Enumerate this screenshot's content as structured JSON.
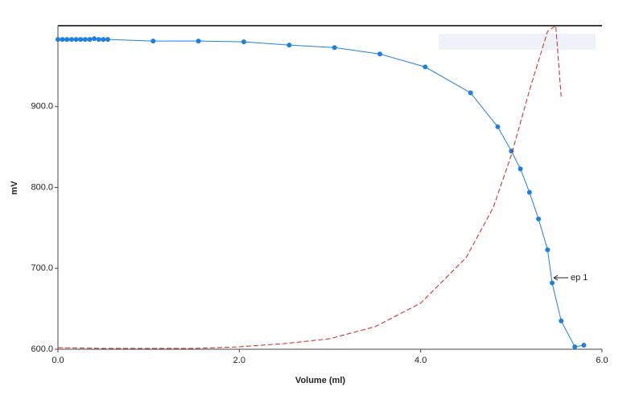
{
  "chart_data": {
    "type": "line",
    "x_label": "Volume (ml)",
    "y_label": "mV",
    "xlim": [
      0,
      6
    ],
    "ylim": [
      600,
      1000
    ],
    "xticks": [
      {
        "value": 0,
        "label": "0.0"
      },
      {
        "value": 2,
        "label": "2.0"
      },
      {
        "value": 4,
        "label": "4.0"
      },
      {
        "value": 6,
        "label": "6.0"
      }
    ],
    "yticks": [
      {
        "value": 600,
        "label": "600.0"
      },
      {
        "value": 700,
        "label": "700.0"
      },
      {
        "value": 800,
        "label": "800.0"
      },
      {
        "value": 900,
        "label": "900.0"
      }
    ],
    "series": [
      {
        "color": "#1f7fe0",
        "marker": true,
        "dashed": false,
        "x": [
          0,
          0.05,
          0.1,
          0.15,
          0.2,
          0.25,
          0.3,
          0.35,
          0.4,
          0.45,
          0.5,
          0.55,
          1.05,
          1.55,
          2.05,
          2.55,
          3.05,
          3.55,
          4.05,
          4.55,
          4.85,
          5.0,
          5.1,
          5.2,
          5.3,
          5.4,
          5.45,
          5.55,
          5.7,
          5.8
        ],
        "values": [
          983,
          983,
          983,
          983,
          983,
          983,
          983,
          983,
          984,
          983,
          983,
          983,
          981,
          981,
          980,
          976,
          973,
          965,
          949,
          917,
          875,
          845,
          823,
          794,
          761,
          723,
          682,
          635,
          603,
          605
        ]
      },
      {
        "color": "#d42020",
        "marker": false,
        "dashed": true,
        "x": [
          0,
          0.5,
          1.0,
          1.5,
          2.0,
          2.5,
          3.0,
          3.5,
          4.0,
          4.5,
          4.8,
          5.0,
          5.2,
          5.4,
          5.49,
          5.55
        ],
        "values": [
          602,
          601,
          601,
          601,
          603,
          607,
          613,
          628,
          657,
          713,
          775,
          840,
          920,
          993,
          1000,
          912
        ]
      }
    ],
    "annotations": [
      {
        "text": "ep 1"
      }
    ]
  }
}
